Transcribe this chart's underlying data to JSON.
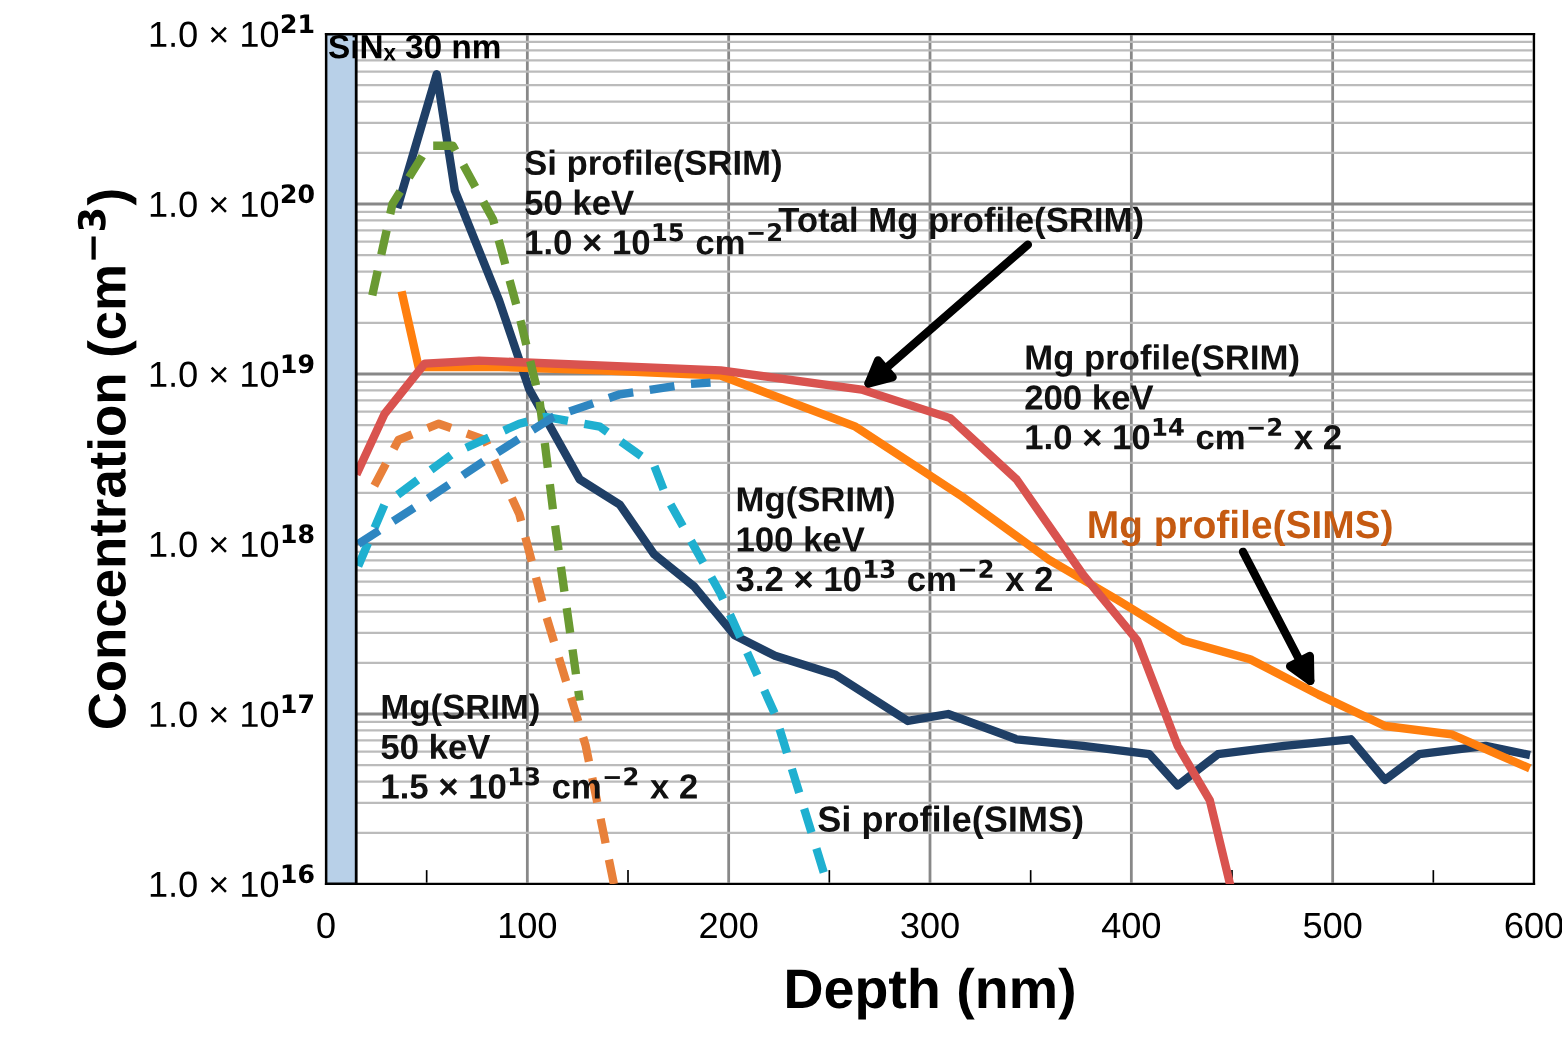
{
  "chart_data": {
    "type": "line",
    "xlabel": "Depth (nm)",
    "ylabel": "Concentration (cm$^{−3}$)",
    "log": "y",
    "grid": true,
    "marker": "none",
    "xlim": [
      0,
      600
    ],
    "xticks": [
      0,
      100,
      200,
      300,
      400,
      500,
      600
    ],
    "ylim": [
      1e+16,
      1e+21
    ],
    "yticks": [
      {
        "value": 1e+16,
        "label": "1.0 × 10$^{16}$"
      },
      {
        "value": 1e+17,
        "label": "1.0 × 10$^{17}$"
      },
      {
        "value": 1e+18,
        "label": "1.0 × 10$^{18}$"
      },
      {
        "value": 1e+19,
        "label": "1.0 × 10$^{19}$"
      },
      {
        "value": 1e+20,
        "label": "1.0 × 10$^{20}$"
      },
      {
        "value": 1e+21,
        "label": "1.0 × 10$^{21}$"
      }
    ],
    "bands": [
      {
        "axis": "x",
        "from": 0,
        "to": 15,
        "label": "SiNₓ 30 nm",
        "color": "#b8d0e8"
      }
    ],
    "series": [
      {
        "color": "#1f3f66",
        "line_style": "solid",
        "x": [
          36,
          55,
          64,
          86,
          101,
          126,
          146,
          163,
          183,
          203,
          223,
          253,
          289,
          309,
          343,
          376,
          409,
          423,
          443,
          476,
          509,
          526,
          543,
          576,
          596
        ],
        "values": [
          1e+20,
          5.8e+20,
          1.2e+20,
          2.7e+19,
          8.1e+18,
          2.4e+18,
          1.7e+18,
          8.7e+17,
          5.6e+17,
          2.9e+17,
          2.2e+17,
          1.7e+17,
          9.1e+16,
          1e+17,
          7.1e+16,
          6.5e+16,
          5.8e+16,
          3.8e+16,
          5.8e+16,
          6.5e+16,
          7.1e+16,
          4.1e+16,
          5.8e+16,
          6.5e+16,
          5.8e+16
        ]
      },
      {
        "color": "#ff7f0e",
        "line_style": "solid",
        "x": [
          38,
          46,
          86,
          136,
          196,
          263,
          316,
          359,
          393,
          426,
          459,
          493,
          526,
          559,
          596
        ],
        "values": [
          2.9e+19,
          1.1e+19,
          1.1e+19,
          1.05e+19,
          9.8e+18,
          4.9e+18,
          1.9e+18,
          8.1e+17,
          4.7e+17,
          2.7e+17,
          2.1e+17,
          1.3e+17,
          8.5e+16,
          7.6e+16,
          4.9e+16
        ]
      },
      {
        "color": "#d9534f",
        "line_style": "solid",
        "x": [
          16,
          29,
          49,
          76,
          196,
          266,
          310,
          343,
          376,
          403,
          423,
          439,
          449
        ],
        "values": [
          2.7e+18,
          5.8e+18,
          1.15e+19,
          1.2e+19,
          1.05e+19,
          8.1e+18,
          5.5e+18,
          2.4e+18,
          6.6e+17,
          2.7e+17,
          6.5e+16,
          3.1e+16,
          1e+16
        ]
      },
      {
        "color": "#6a9a32",
        "line_style": "dashed",
        "x": [
          23,
          33,
          51,
          63,
          83,
          96,
          106,
          113,
          126
        ],
        "values": [
          2.9e+19,
          1e+20,
          2.2e+20,
          2.2e+20,
          8.1e+19,
          2.2e+19,
          7.1e+18,
          1.5e+18,
          1.2e+17
        ]
      },
      {
        "color": "#e8803a",
        "line_style": "dashed",
        "x": [
          24,
          36,
          56,
          79,
          96,
          109,
          129,
          143
        ],
        "values": [
          2.2e+18,
          4.1e+18,
          5.1e+18,
          4.1e+18,
          1.5e+18,
          3.9e+17,
          6.5e+16,
          1e+16
        ]
      },
      {
        "color": "#1fb0d0",
        "line_style": "dashed",
        "x": [
          16,
          29,
          63,
          96,
          109,
          136,
          163,
          169,
          196,
          223,
          249
        ],
        "values": [
          7.4e+17,
          1.7e+18,
          3.4e+18,
          5.1e+18,
          5.6e+18,
          4.9e+18,
          2.9e+18,
          1.9e+18,
          5.1e+17,
          1e+17,
          1e+16
        ]
      },
      {
        "color": "#2e86c1",
        "line_style": "dashed",
        "x": [
          16,
          46,
          79,
          113,
          146,
          179,
          191
        ],
        "values": [
          1e+18,
          1.7e+18,
          3.1e+18,
          5.6e+18,
          7.6e+18,
          8.7e+18,
          8.9e+18
        ]
      }
    ],
    "annotations": [
      "Si profile(SRIM)\n50 keV\n1.0 × 10$^{15}$ cm$^{−2}$",
      {
        "text": "Total Mg profile(SRIM)",
        "x": 266,
        "y": 8.1e+18
      },
      "Mg profile(SRIM)\n200 keV\n1.0 × 10$^{14}$ cm$^{−2}$ x 2",
      "Mg(SRIM)\n100 keV\n3.2 × 10$^{13}$ cm$^{−2}$ x 2",
      {
        "text": "Mg profile(SIMS)",
        "x": 491,
        "y": 1.4e+17
      },
      "Mg(SRIM)\n50 keV\n1.5 × 10$^{13}$ cm$^{−2}$ x 2",
      {
        "text": "Si profile(SIMS)",
        "x": 244,
        "y": 2.9e+16
      }
    ]
  }
}
